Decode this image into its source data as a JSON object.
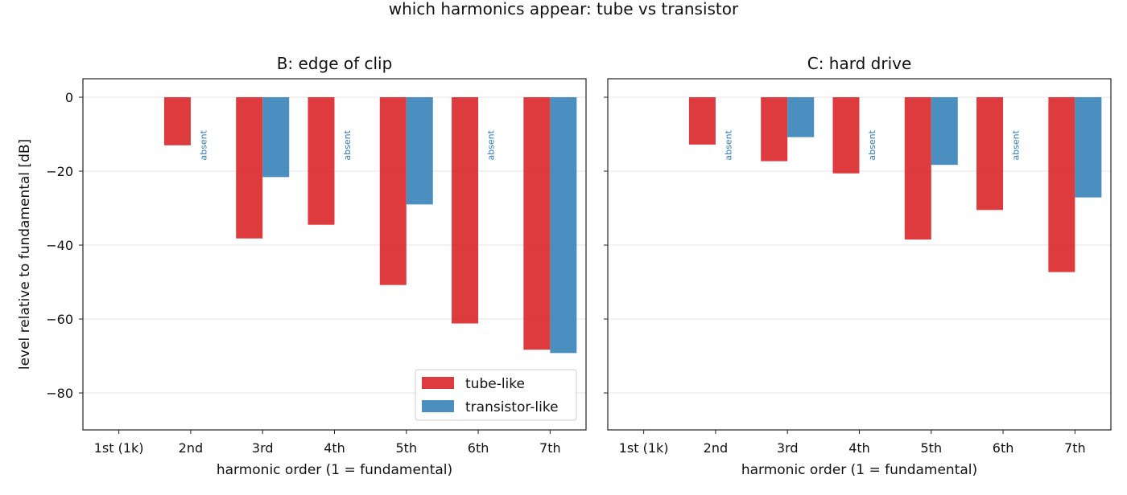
{
  "figure": {
    "suptitle": "which harmonics appear: tube vs transistor"
  },
  "colors": {
    "tube": "#d7191c",
    "transistor": "#2c7bb6",
    "absent_text": "#2c7bb6"
  },
  "chart_data": [
    {
      "type": "bar",
      "title": "B: edge of clip",
      "xlabel": "harmonic order (1 = fundamental)",
      "ylabel": "level relative to fundamental [dB]",
      "ylim": [
        -90,
        5
      ],
      "yticks": [
        0,
        -20,
        -40,
        -60,
        -80
      ],
      "ytick_labels": [
        "0",
        "−20",
        "−40",
        "−60",
        "−80"
      ],
      "grid": "horizontal",
      "categories": [
        "1st (1k)",
        "2nd",
        "3rd",
        "4th",
        "5th",
        "6th",
        "7th"
      ],
      "series": [
        {
          "name": "tube-like",
          "values": [
            null,
            -13,
            -38.2,
            -34.5,
            -50.8,
            -61.2,
            -68.3
          ]
        },
        {
          "name": "transistor-like",
          "values": [
            null,
            null,
            -21.6,
            null,
            -29,
            null,
            -69.2
          ]
        }
      ],
      "annotations": [
        {
          "text": "absent",
          "category": "2nd"
        },
        {
          "text": "absent",
          "category": "4th"
        },
        {
          "text": "absent",
          "category": "6th"
        }
      ],
      "legend": "lower-right"
    },
    {
      "type": "bar",
      "title": "C: hard drive",
      "xlabel": "harmonic order (1 = fundamental)",
      "ylabel": "",
      "ylim": [
        -90,
        5
      ],
      "yticks": [
        0,
        -20,
        -40,
        -60,
        -80
      ],
      "ytick_labels": [],
      "grid": "horizontal",
      "categories": [
        "1st (1k)",
        "2nd",
        "3rd",
        "4th",
        "5th",
        "6th",
        "7th"
      ],
      "series": [
        {
          "name": "tube-like",
          "values": [
            null,
            -12.8,
            -17.3,
            -20.6,
            -38.5,
            -30.5,
            -47.3
          ]
        },
        {
          "name": "transistor-like",
          "values": [
            null,
            null,
            -10.8,
            null,
            -18.3,
            null,
            -27.1
          ]
        }
      ],
      "annotations": [
        {
          "text": "absent",
          "category": "2nd"
        },
        {
          "text": "absent",
          "category": "4th"
        },
        {
          "text": "absent",
          "category": "6th"
        }
      ]
    }
  ]
}
